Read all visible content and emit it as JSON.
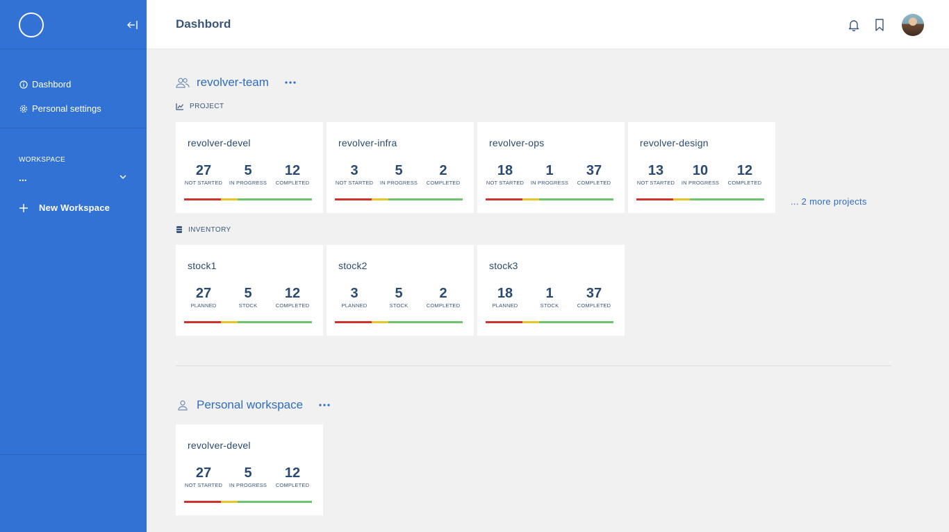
{
  "sidebar": {
    "nav": [
      {
        "label": "Dashbord",
        "icon": "info-icon"
      },
      {
        "label": "Personal settings",
        "icon": "gear-icon"
      }
    ],
    "workspace_label": "WORKSPACE",
    "workspace_value": "...",
    "new_workspace_label": "New Workspace"
  },
  "header": {
    "title": "Dashbord"
  },
  "groups": {
    "team": {
      "name": "revolver-team",
      "project_label": "PROJECT",
      "inventory_label": "INVENTORY",
      "more_projects": "... 2 more projects",
      "projects": [
        {
          "title": "revolver-devel",
          "a": "27",
          "b": "5",
          "c": "12"
        },
        {
          "title": "revolver-infra",
          "a": "3",
          "b": "5",
          "c": "2"
        },
        {
          "title": "revolver-ops",
          "a": "18",
          "b": "1",
          "c": "37"
        },
        {
          "title": "revolver-design",
          "a": "13",
          "b": "10",
          "c": "12"
        }
      ],
      "inventory": [
        {
          "title": "stock1",
          "a": "27",
          "b": "5",
          "c": "12"
        },
        {
          "title": "stock2",
          "a": "3",
          "b": "5",
          "c": "2"
        },
        {
          "title": "stock3",
          "a": "18",
          "b": "1",
          "c": "37"
        }
      ]
    },
    "personal": {
      "name": "Personal workspace",
      "projects": [
        {
          "title": "revolver-devel",
          "a": "27",
          "b": "5",
          "c": "12"
        }
      ]
    }
  },
  "labels": {
    "project": {
      "a": "NOT STARTED",
      "b": "IN PROGRESS",
      "c": "COMPLETED"
    },
    "inventory": {
      "a": "PLANNED",
      "b": "STOCK",
      "c": "COMPLETED"
    }
  },
  "colors": {
    "sidebar": "#3272d5",
    "accent": "#2f6cc2",
    "bar_red": "#d0312d",
    "bar_yellow": "#e6c52a",
    "bar_green": "#6cc46e"
  }
}
